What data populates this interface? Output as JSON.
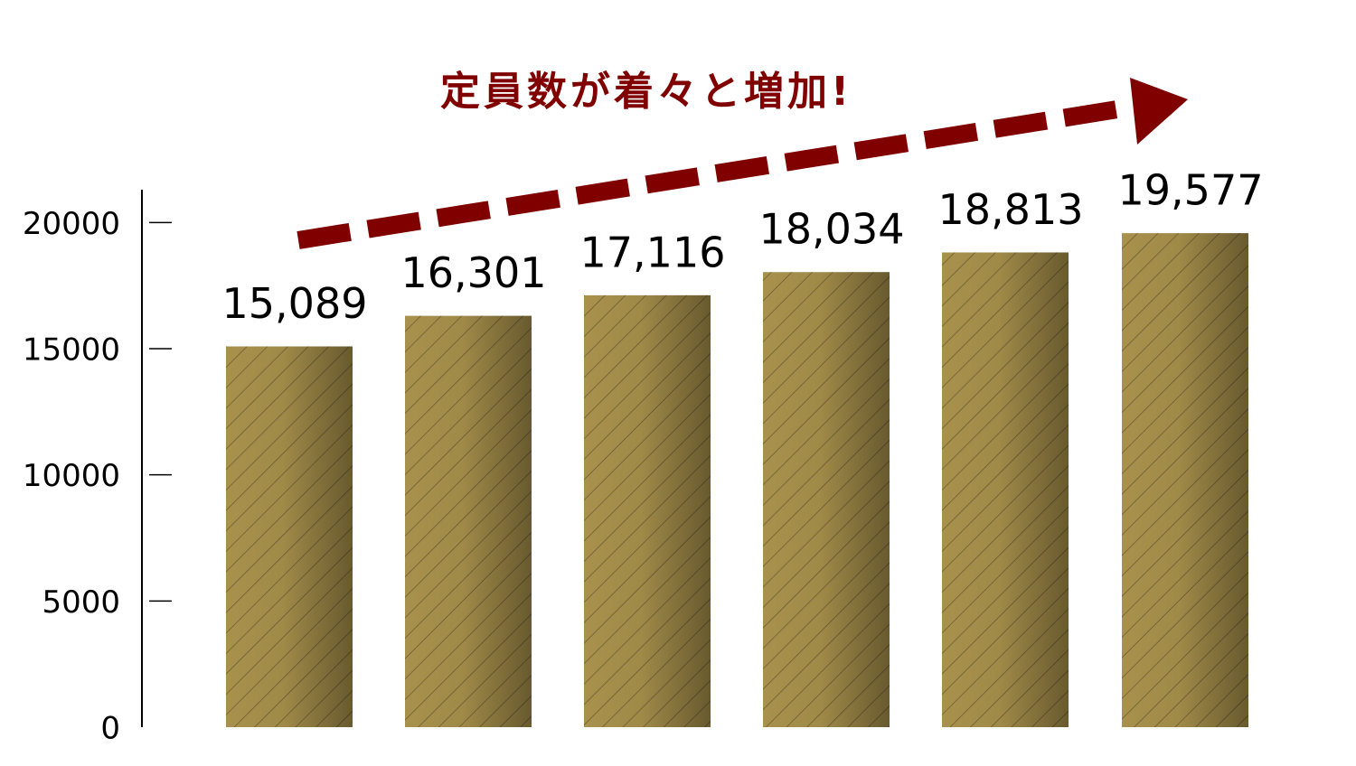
{
  "chart_data": {
    "type": "bar",
    "annotation": "定員数が着々と増加!",
    "values": [
      15089,
      16301,
      17116,
      18034,
      18813,
      19577
    ],
    "value_labels": [
      "15,089",
      "16,301",
      "17,116",
      "18,034",
      "18,813",
      "19,577"
    ],
    "color": "#a8914c",
    "ylim": [
      0,
      21300
    ],
    "yticks": [
      0,
      5000,
      10000,
      15000,
      20000
    ]
  }
}
